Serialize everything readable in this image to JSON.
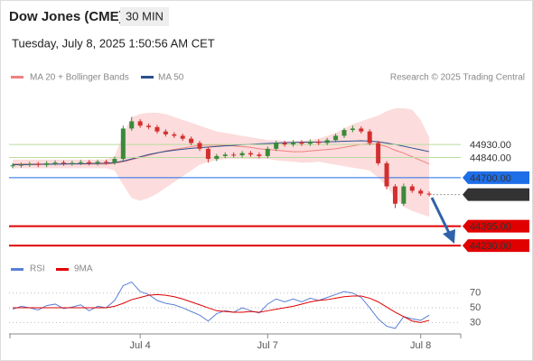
{
  "header": {
    "title": "Dow Jones (CME)",
    "interval": "30 MIN",
    "timestamp": "Tuesday, July 8, 2025 1:50:56 AM CET"
  },
  "chart_data": [
    {
      "type": "candlestick",
      "credit": "Research © 2025 Trading Central",
      "up_color": "#3a8a3a",
      "down_color": "#d32f2f",
      "band_color": "#fbd3d3",
      "ylim": [
        44150,
        45305
      ],
      "open": [
        44780,
        44785,
        44790,
        44795,
        44788,
        44800,
        44805,
        44798,
        44802,
        44808,
        44800,
        44810,
        44805,
        44830,
        45040,
        45090,
        45060,
        45050,
        45020,
        45000,
        44990,
        44970,
        44940,
        44900,
        44830,
        44850,
        44860,
        44855,
        44870,
        44860,
        44850,
        44900,
        44940,
        44930,
        44945,
        44935,
        44950,
        44940,
        44960,
        44990,
        45030,
        45040,
        45020,
        44940,
        44800,
        44640,
        44520,
        44640,
        44610,
        44590
      ],
      "high": [
        44800,
        44805,
        44810,
        44810,
        44815,
        44820,
        44820,
        44817,
        44823,
        44823,
        44825,
        44825,
        44845,
        45060,
        45120,
        45105,
        45075,
        45065,
        45035,
        45015,
        45005,
        44985,
        44955,
        44915,
        44865,
        44875,
        44875,
        44885,
        44885,
        44875,
        44915,
        44955,
        44955,
        44960,
        44960,
        44965,
        44965,
        44975,
        45005,
        45045,
        45060,
        45055,
        45035,
        44955,
        44815,
        44655,
        44660,
        44655,
        44625,
        44605
      ],
      "low": [
        44765,
        44770,
        44775,
        44773,
        44773,
        44785,
        44783,
        44783,
        44787,
        44785,
        44785,
        44790,
        44790,
        44815,
        45025,
        45045,
        45035,
        45005,
        44985,
        44975,
        44955,
        44925,
        44885,
        44805,
        44815,
        44835,
        44840,
        44840,
        44845,
        44835,
        44835,
        44885,
        44915,
        44915,
        44920,
        44920,
        44925,
        44925,
        44945,
        44975,
        45015,
        45005,
        44925,
        44785,
        44620,
        44490,
        44505,
        44595,
        44575,
        44570
      ],
      "close": [
        44785,
        44790,
        44795,
        44788,
        44800,
        44805,
        44798,
        44802,
        44808,
        44800,
        44810,
        44805,
        44830,
        45040,
        45090,
        45060,
        45050,
        45020,
        45000,
        44990,
        44970,
        44940,
        44900,
        44830,
        44850,
        44860,
        44855,
        44870,
        44860,
        44850,
        44900,
        44940,
        44930,
        44945,
        44935,
        44950,
        44940,
        44960,
        44990,
        45030,
        45040,
        45020,
        44940,
        44800,
        44640,
        44520,
        44640,
        44610,
        44590,
        44583
      ],
      "series": [
        {
          "name": "MA 20 + Bollinger Bands",
          "color": "#f08080",
          "values": [
            44795,
            44795,
            44795,
            44795,
            44795,
            44795,
            44795,
            44795,
            44795,
            44795,
            44795,
            44795,
            44800,
            44810,
            44825,
            44840,
            44855,
            44870,
            44885,
            44895,
            44905,
            44915,
            44925,
            44925,
            44925,
            44925,
            44920,
            44915,
            44910,
            44900,
            44895,
            44890,
            44885,
            44880,
            44880,
            44885,
            44890,
            44895,
            44900,
            44910,
            44920,
            44930,
            44935,
            44930,
            44915,
            44890,
            44870,
            44845,
            44820,
            44795
          ],
          "upper": [
            44825,
            44825,
            44825,
            44825,
            44825,
            44825,
            44825,
            44825,
            44825,
            44825,
            44825,
            44825,
            44850,
            45000,
            45120,
            45140,
            45150,
            45150,
            45140,
            45120,
            45100,
            45080,
            45060,
            45040,
            45020,
            45010,
            45000,
            44990,
            44980,
            44970,
            44960,
            44960,
            44955,
            44955,
            44955,
            44960,
            44970,
            44990,
            45010,
            45040,
            45070,
            45090,
            45110,
            45130,
            45160,
            45180,
            45180,
            45170,
            45100,
            44980
          ],
          "lower": [
            44765,
            44765,
            44765,
            44765,
            44765,
            44765,
            44765,
            44765,
            44765,
            44765,
            44765,
            44765,
            44750,
            44650,
            44560,
            44540,
            44560,
            44590,
            44630,
            44670,
            44710,
            44750,
            44790,
            44810,
            44820,
            44830,
            44830,
            44830,
            44830,
            44830,
            44830,
            44820,
            44815,
            44810,
            44805,
            44805,
            44810,
            44800,
            44790,
            44780,
            44770,
            44760,
            44750,
            44700,
            44640,
            44560,
            44500,
            44470,
            44450,
            44430
          ]
        },
        {
          "name": "MA 50",
          "color": "#2c4f8c",
          "values": [
            44790,
            44790,
            44791,
            44792,
            44793,
            44794,
            44795,
            44796,
            44797,
            44798,
            44799,
            44800,
            44805,
            44815,
            44830,
            44845,
            44860,
            44872,
            44882,
            44890,
            44897,
            44903,
            44908,
            44912,
            44916,
            44920,
            44924,
            44928,
            44931,
            44934,
            44937,
            44940,
            44942,
            44944,
            44945,
            44946,
            44947,
            44948,
            44950,
            44952,
            44954,
            44955,
            44953,
            44948,
            44940,
            44930,
            44918,
            44905,
            44893,
            44880
          ]
        }
      ],
      "levels": [
        {
          "value": 44930,
          "label": "44930.00",
          "color": "#7cb342",
          "line_color": "#b9dc9e",
          "width": 1,
          "boxed": false
        },
        {
          "value": 44840,
          "label": "44840.00",
          "color": "#7cb342",
          "line_color": "#b9dc9e",
          "width": 1,
          "boxed": false
        },
        {
          "value": 44700,
          "label": "44700.00",
          "color": "#1e6ee8",
          "line_color": "#1e6ee8",
          "width": 1,
          "boxed": true
        },
        {
          "value": 44365,
          "label": "44365.00",
          "color": "#e00000",
          "line_color": "#e00000",
          "width": 2,
          "boxed": true
        },
        {
          "value": 44230,
          "label": "44230.00",
          "color": "#e00000",
          "line_color": "#e00000",
          "width": 2,
          "boxed": true
        }
      ],
      "last_price": {
        "value": 44583,
        "label": "44583.00",
        "color": "#333333"
      }
    },
    {
      "type": "line",
      "categories": [
        null,
        null,
        null,
        null,
        null,
        null,
        null,
        null,
        null,
        null,
        null,
        null,
        null,
        null,
        null,
        "Jul 4",
        null,
        null,
        null,
        null,
        null,
        null,
        null,
        null,
        null,
        null,
        null,
        null,
        null,
        null,
        "Jul 7",
        null,
        null,
        null,
        null,
        null,
        null,
        null,
        null,
        null,
        null,
        null,
        null,
        null,
        null,
        null,
        null,
        null,
        "Jul 8",
        null
      ],
      "series": [
        {
          "name": "RSI",
          "color": "#5b7fd6",
          "values": [
            48,
            52,
            50,
            47,
            53,
            55,
            49,
            51,
            54,
            46,
            52,
            50,
            60,
            80,
            85,
            72,
            68,
            60,
            56,
            54,
            50,
            45,
            40,
            32,
            42,
            46,
            44,
            50,
            46,
            43,
            55,
            62,
            58,
            62,
            58,
            63,
            60,
            64,
            68,
            72,
            70,
            64,
            50,
            35,
            25,
            22,
            38,
            35,
            33,
            40
          ]
        },
        {
          "name": "9MA",
          "color": "#e00000",
          "values": [
            50,
            50,
            50,
            50,
            50,
            50,
            50,
            50,
            50,
            50,
            50,
            50,
            52,
            56,
            61,
            64,
            67,
            68,
            67,
            65,
            62,
            58,
            54,
            50,
            46,
            45,
            44,
            44,
            45,
            44,
            46,
            48,
            50,
            52,
            55,
            58,
            60,
            61,
            63,
            65,
            66,
            66,
            63,
            58,
            51,
            44,
            38,
            32,
            30,
            33
          ]
        }
      ],
      "ylim": [
        17,
        88
      ],
      "yticks": [
        30,
        50,
        70
      ],
      "grid": true
    }
  ]
}
